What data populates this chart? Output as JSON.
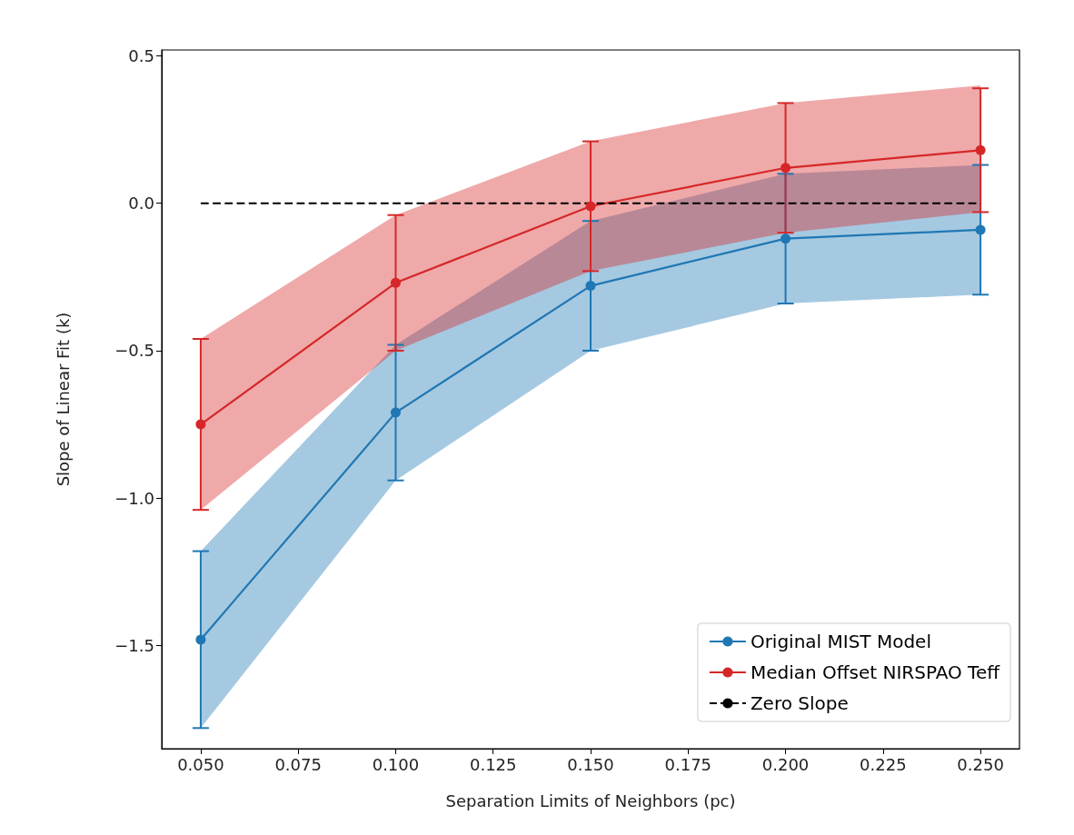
{
  "chart_data": {
    "type": "line",
    "xlabel": "Separation Limits of Neighbors (pc)",
    "ylabel": "Slope of Linear Fit (k)",
    "x": [
      0.05,
      0.1,
      0.15,
      0.2,
      0.25
    ],
    "series": [
      {
        "name": "Original MIST Model",
        "color": "#1f77b4",
        "values": [
          -1.48,
          -0.71,
          -0.28,
          -0.12,
          -0.09
        ],
        "errors": [
          0.3,
          0.23,
          0.22,
          0.22,
          0.22
        ],
        "lower": [
          -1.78,
          -0.94,
          -0.5,
          -0.34,
          -0.31
        ],
        "upper": [
          -1.18,
          -0.48,
          -0.06,
          0.1,
          0.13
        ]
      },
      {
        "name": "Median Offset NIRSPAO Teff",
        "color": "#d62728",
        "values": [
          -0.75,
          -0.27,
          -0.01,
          0.12,
          0.18
        ],
        "errors": [
          0.29,
          0.23,
          0.22,
          0.22,
          0.21
        ],
        "lower": [
          -1.04,
          -0.5,
          -0.23,
          -0.1,
          -0.03
        ],
        "upper": [
          -0.46,
          -0.04,
          0.21,
          0.34,
          0.4
        ]
      },
      {
        "name": "Zero Slope",
        "color": "#000000",
        "type": "line",
        "line_style": "dashed",
        "marker": "none",
        "x": [
          0.05,
          0.25
        ],
        "values": [
          0,
          0
        ]
      }
    ],
    "marker": "circle",
    "xlim": [
      0.04,
      0.26
    ],
    "xticks": [
      {
        "value": 0.05,
        "label": "0.050"
      },
      0.075,
      {
        "value": 0.1,
        "label": "0.100"
      },
      0.125,
      {
        "value": 0.15,
        "label": "0.150"
      },
      0.175,
      {
        "value": 0.2,
        "label": "0.200"
      },
      0.225,
      {
        "value": 0.25,
        "label": "0.250"
      }
    ],
    "ylim": [
      -1.85,
      0.52
    ],
    "yticks": [
      -1.5,
      {
        "value": -1,
        "label": "−1.0"
      },
      -0.5,
      {
        "value": 0,
        "label": "0.0"
      },
      0.5
    ],
    "grid": false,
    "legend": "bottom right"
  }
}
